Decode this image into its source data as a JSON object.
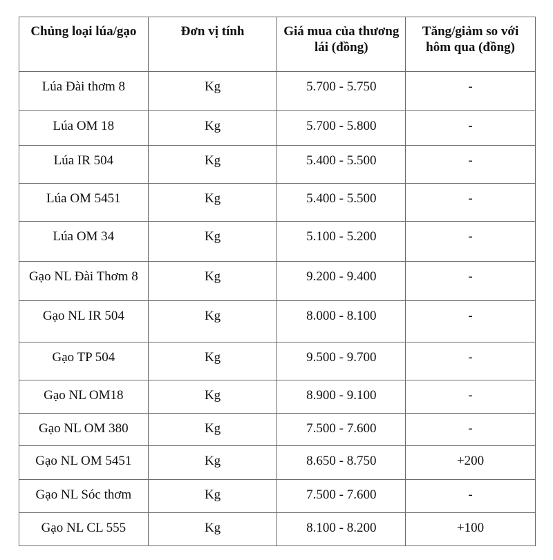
{
  "table": {
    "headers": [
      "Chủng loại lúa/gạo",
      "Đơn vị tính",
      "Giá mua của thương lái (đồng)",
      "Tăng/giảm so với hôm qua (đồng)"
    ],
    "rows": [
      [
        "Lúa Đài thơm 8",
        "Kg",
        "5.700 - 5.750",
        "-"
      ],
      [
        "Lúa OM 18",
        "Kg",
        "5.700 - 5.800",
        "-"
      ],
      [
        "Lúa IR 504",
        "Kg",
        "5.400 - 5.500",
        "-"
      ],
      [
        "Lúa OM 5451",
        "Kg",
        "5.400 - 5.500",
        "-"
      ],
      [
        "Lúa OM 34",
        "Kg",
        "5.100 - 5.200",
        "-"
      ],
      [
        "Gạo NL Đài Thơm 8",
        "Kg",
        "9.200 - 9.400",
        "-"
      ],
      [
        "Gạo NL IR 504",
        "Kg",
        "8.000 - 8.100",
        "-"
      ],
      [
        "Gạo TP 504",
        "Kg",
        "9.500 - 9.700",
        "-"
      ],
      [
        "Gạo NL OM18",
        "Kg",
        "8.900 - 9.100",
        "-"
      ],
      [
        "Gạo NL OM 380",
        "Kg",
        "7.500 - 7.600",
        "-"
      ],
      [
        "Gạo NL OM 5451",
        "Kg",
        "8.650 - 8.750",
        "+200"
      ],
      [
        "Gạo NL Sóc thơm",
        "Kg",
        "7.500 - 7.600",
        "-"
      ],
      [
        "Gạo NL CL 555",
        "Kg",
        "8.100 - 8.200",
        "+100"
      ]
    ]
  }
}
